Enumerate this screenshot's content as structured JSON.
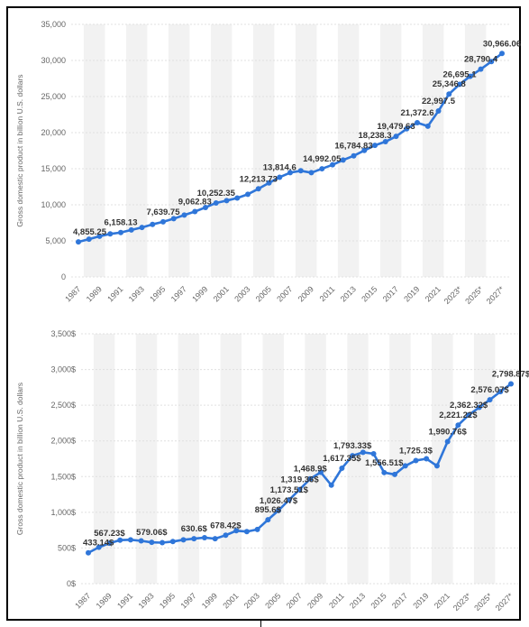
{
  "colors": {
    "line": "#2f76d9",
    "band": "#f2f2f2",
    "grid": "#e0e0e0"
  },
  "chart_data": [
    {
      "type": "line",
      "ylabel": "Gross domestic product in billion U.S. dollars",
      "ylim": [
        0,
        35000
      ],
      "yticks": [
        "0",
        "5,000",
        "10,000",
        "15,000",
        "20,000",
        "25,000",
        "30,000",
        "35,000"
      ],
      "ytick_values": [
        0,
        5000,
        10000,
        15000,
        20000,
        25000,
        30000,
        35000
      ],
      "x": [
        1987,
        1988,
        1989,
        1990,
        1991,
        1992,
        1993,
        1994,
        1995,
        1996,
        1997,
        1998,
        1999,
        2000,
        2001,
        2002,
        2003,
        2004,
        2005,
        2006,
        2007,
        2008,
        2009,
        2010,
        2011,
        2012,
        2013,
        2014,
        2015,
        2016,
        2017,
        2018,
        2019,
        2020,
        2021,
        2022,
        2023,
        2024,
        2025,
        2026,
        2027
      ],
      "xtick_labels": [
        "1987",
        "1989",
        "1991",
        "1993",
        "1995",
        "1997",
        "1999",
        "2001",
        "2003",
        "2005",
        "2007",
        "2009",
        "2011",
        "2013",
        "2015",
        "2017",
        "2019",
        "2021",
        "2023*",
        "2025*",
        "2027*"
      ],
      "values": [
        4855.25,
        5236,
        5641,
        5963,
        6158.13,
        6520,
        6859,
        7287,
        7639.75,
        8073,
        8577,
        9062.83,
        9631,
        10252.35,
        10582,
        10936,
        11458,
        12213.73,
        13036,
        13814.6,
        14451,
        14712,
        14448,
        14992.05,
        15542,
        16197,
        16784.83,
        17527,
        18238.3,
        18745,
        19479.63,
        20527,
        21372.6,
        20894,
        22997.5,
        25346.8,
        26695.1,
        27800,
        28790.4,
        29850,
        30966.06
      ],
      "data_labels": [
        {
          "i": 0,
          "text": "4,855.25"
        },
        {
          "i": 4,
          "text": "6,158.13"
        },
        {
          "i": 8,
          "text": "7,639.75"
        },
        {
          "i": 11,
          "text": "9,062.83"
        },
        {
          "i": 13,
          "text": "10,252.35"
        },
        {
          "i": 17,
          "text": "12,213.73"
        },
        {
          "i": 19,
          "text": "13,814.6"
        },
        {
          "i": 23,
          "text": "14,992.05"
        },
        {
          "i": 26,
          "text": "16,784.83"
        },
        {
          "i": 28,
          "text": "18,238.3"
        },
        {
          "i": 30,
          "text": "19,479.63"
        },
        {
          "i": 32,
          "text": "21,372.6"
        },
        {
          "i": 34,
          "text": "22,997.5"
        },
        {
          "i": 35,
          "text": "25,346.8"
        },
        {
          "i": 36,
          "text": "26,695.1"
        },
        {
          "i": 38,
          "text": "28,790.4"
        },
        {
          "i": 40,
          "text": "30,966.06"
        }
      ]
    },
    {
      "type": "line",
      "ylabel": "Gross domestic product in billion U.S. dollars",
      "ylim": [
        0,
        3500
      ],
      "yticks": [
        "0$",
        "500$",
        "1,000$",
        "1,500$",
        "2,000$",
        "2,500$",
        "3,000$",
        "3,500$"
      ],
      "ytick_values": [
        0,
        500,
        1000,
        1500,
        2000,
        2500,
        3000,
        3500
      ],
      "x": [
        1987,
        1988,
        1989,
        1990,
        1991,
        1992,
        1993,
        1994,
        1995,
        1996,
        1997,
        1998,
        1999,
        2000,
        2001,
        2002,
        2003,
        2004,
        2005,
        2006,
        2007,
        2008,
        2009,
        2010,
        2011,
        2012,
        2013,
        2014,
        2015,
        2016,
        2017,
        2018,
        2019,
        2020,
        2021,
        2022,
        2023,
        2024,
        2025,
        2026,
        2027
      ],
      "xtick_labels": [
        "1987",
        "1989",
        "1991",
        "1993",
        "1995",
        "1997",
        "1999",
        "2001",
        "2003",
        "2005",
        "2007",
        "2009",
        "2011",
        "2013",
        "2015",
        "2017",
        "2019",
        "2021",
        "2023*",
        "2025*",
        "2027*"
      ],
      "values": [
        433.14,
        510,
        567.23,
        610,
        615,
        600,
        579.06,
        575,
        590,
        615,
        630.6,
        645,
        630,
        678.42,
        742,
        730,
        760,
        895.6,
        1026.47,
        1173.51,
        1319.36,
        1468.9,
        1560,
        1380,
        1617.35,
        1793.33,
        1840,
        1820,
        1556.51,
        1530,
        1650,
        1725.3,
        1750,
        1650,
        1990.76,
        2221.22,
        2362.32,
        2470,
        2576.07,
        2690,
        2798.87
      ],
      "data_labels": [
        {
          "i": 0,
          "text": "433.14$"
        },
        {
          "i": 2,
          "text": "567.23$"
        },
        {
          "i": 6,
          "text": "579.06$"
        },
        {
          "i": 10,
          "text": "630.6$"
        },
        {
          "i": 13,
          "text": "678.42$"
        },
        {
          "i": 17,
          "text": "895.6$"
        },
        {
          "i": 18,
          "text": "1,026.47$"
        },
        {
          "i": 19,
          "text": "1,173.51$"
        },
        {
          "i": 20,
          "text": "1,319.36$"
        },
        {
          "i": 21,
          "text": "1,468.9$"
        },
        {
          "i": 24,
          "text": "1,617.35$"
        },
        {
          "i": 25,
          "text": "1,793.33$"
        },
        {
          "i": 28,
          "text": "1,556.51$"
        },
        {
          "i": 31,
          "text": "1,725.3$"
        },
        {
          "i": 34,
          "text": "1,990.76$"
        },
        {
          "i": 35,
          "text": "2,221.22$"
        },
        {
          "i": 36,
          "text": "2,362.32$"
        },
        {
          "i": 38,
          "text": "2,576.07$"
        },
        {
          "i": 40,
          "text": "2,798.87$"
        }
      ]
    }
  ]
}
